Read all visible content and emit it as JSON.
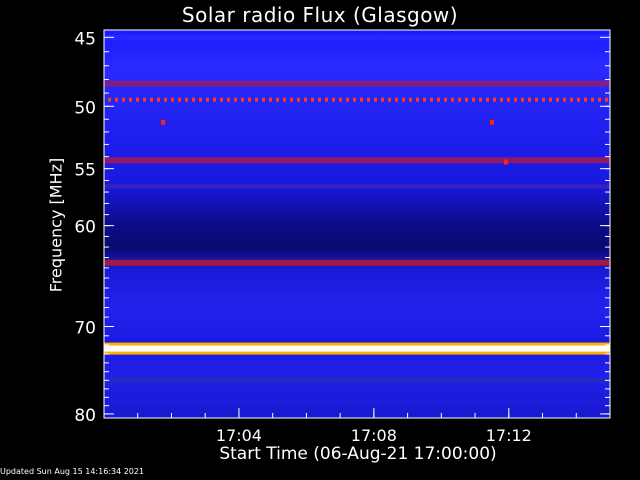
{
  "chart_data": {
    "type": "heatmap",
    "title": "Solar radio Flux (Glasgow)",
    "ylabel": "Frequency [MHz]",
    "xlabel": "Start Time (06-Aug-21 17:00:00)",
    "y_ticks": [
      "45",
      "50",
      "55",
      "60",
      "70",
      "80"
    ],
    "x_ticks": [
      "17:04",
      "17:08",
      "17:12"
    ],
    "y_axis": {
      "scale": "log",
      "range_mhz": [
        44.5,
        80.5
      ],
      "inverted": true
    },
    "x_axis": {
      "range": [
        "17:00:00",
        "17:15:00"
      ]
    },
    "colormap": [
      "#000000",
      "#1010d0",
      "#3a3aff",
      "#8a1a6a",
      "#ff0000",
      "#ffd000",
      "#ffffff"
    ],
    "bands": [
      {
        "freq_mhz": 45.0,
        "intensity": "blue",
        "color": "#2828ff"
      },
      {
        "freq_mhz": 48.3,
        "intensity": "medium",
        "color": "#8a1e7a"
      },
      {
        "freq_mhz": 49.5,
        "intensity": "spiky",
        "color": "#ff3a1a"
      },
      {
        "freq_mhz": 54.3,
        "intensity": "medium",
        "color": "#9a1a5a"
      },
      {
        "freq_mhz": 56.5,
        "intensity": "low",
        "color": "#4a2aa0"
      },
      {
        "freq_mhz": 63.5,
        "intensity": "medium",
        "color": "#b01a3a"
      },
      {
        "freq_mhz": 72.4,
        "intensity": "very high",
        "color": "#ffffff"
      },
      {
        "freq_mhz": 76.0,
        "intensity": "low",
        "color": "#3030a0"
      }
    ],
    "spots": [
      {
        "time": "17:01:45",
        "freq_mhz": 51.2,
        "color": "#ff2020"
      },
      {
        "time": "17:11:30",
        "freq_mhz": 51.2,
        "color": "#ff2020"
      },
      {
        "time": "17:11:55",
        "freq_mhz": 54.4,
        "color": "#ff2020"
      }
    ]
  },
  "footer": {
    "updated": "Updated Sun Aug 15 14:16:34 2021"
  }
}
